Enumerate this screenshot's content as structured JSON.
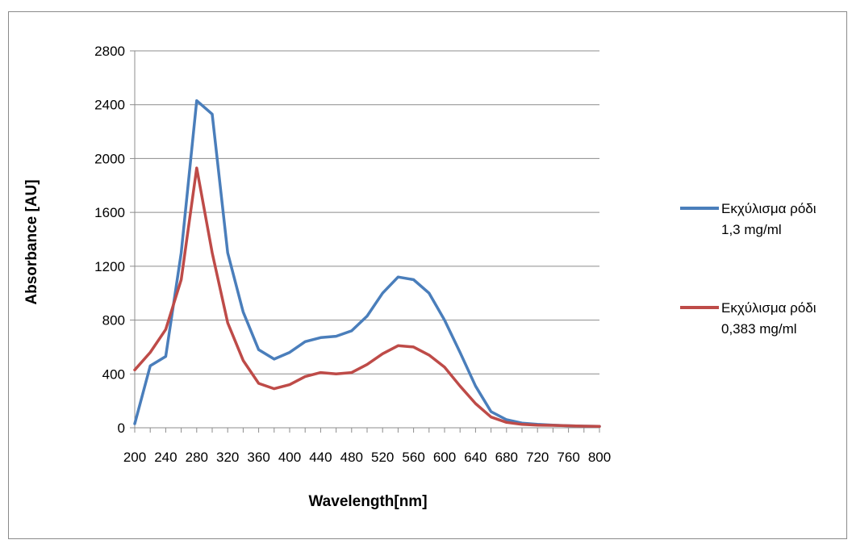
{
  "chart_data": {
    "type": "line",
    "title": "",
    "xlabel": "Wavelength[nm]",
    "ylabel": "Absorbance [AU]",
    "ylim": [
      0,
      2800
    ],
    "xlim": [
      200,
      800
    ],
    "yticks": [
      0,
      400,
      800,
      1200,
      1600,
      2000,
      2400,
      2800
    ],
    "xtick_labels": [
      "200",
      "240",
      "280",
      "320",
      "360",
      "400",
      "440",
      "480",
      "520",
      "560",
      "600",
      "640",
      "680",
      "720",
      "760",
      "800"
    ],
    "grid": "horizontal",
    "legend_position": "right",
    "x": [
      200,
      220,
      240,
      260,
      280,
      300,
      320,
      340,
      360,
      380,
      400,
      420,
      440,
      460,
      480,
      500,
      520,
      540,
      560,
      580,
      600,
      620,
      640,
      660,
      680,
      700,
      720,
      740,
      760,
      780,
      800
    ],
    "series": [
      {
        "name": "Εκχύλισμα ρόδι 1,3 mg/ml",
        "name_lines": [
          "Εκχύλισμα ρόδι",
          "1,3 mg/ml"
        ],
        "color": "#4a7ebb",
        "values": [
          30,
          460,
          530,
          1300,
          2430,
          2330,
          1300,
          860,
          580,
          510,
          560,
          640,
          670,
          680,
          720,
          830,
          1000,
          1120,
          1100,
          1000,
          800,
          560,
          310,
          120,
          60,
          35,
          25,
          20,
          15,
          12,
          10
        ]
      },
      {
        "name": "Εκχύλισμα ρόδι 0,383 mg/ml",
        "name_lines": [
          "Εκχύλισμα ρόδι",
          "0,383 mg/ml"
        ],
        "color": "#be4b48",
        "values": [
          430,
          560,
          730,
          1100,
          1930,
          1300,
          780,
          500,
          330,
          290,
          320,
          380,
          410,
          400,
          410,
          470,
          550,
          610,
          600,
          540,
          450,
          310,
          180,
          80,
          40,
          25,
          20,
          18,
          15,
          12,
          10
        ]
      }
    ]
  }
}
